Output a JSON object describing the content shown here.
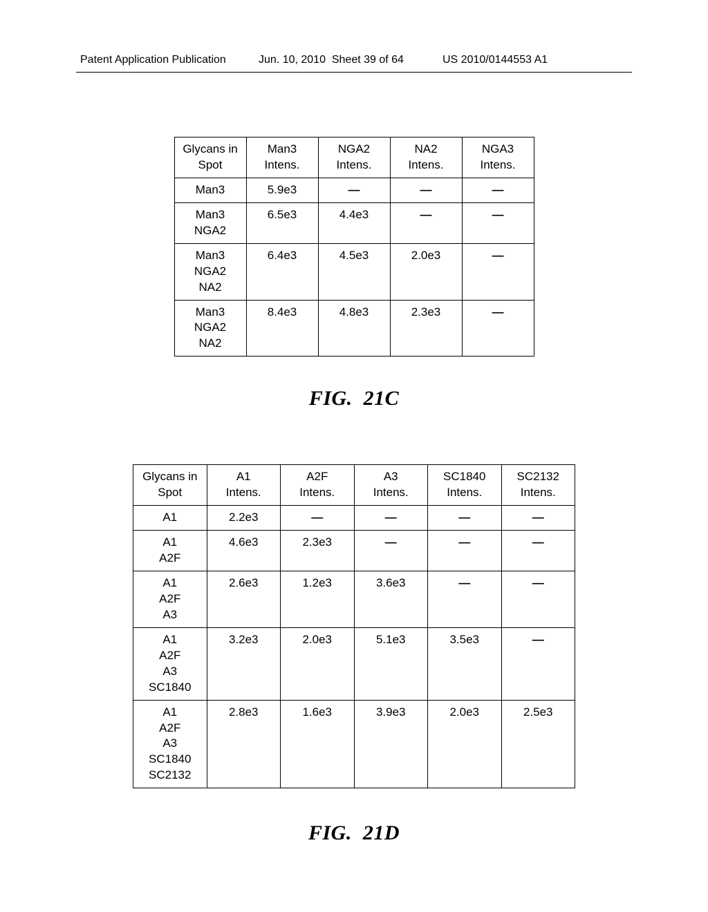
{
  "header": {
    "left": "Patent Application Publication",
    "date": "Jun. 10, 2010",
    "sheet": "Sheet 39 of 64",
    "pubno": "US 2010/0144553 A1"
  },
  "figC": {
    "caption_prefix": "FIG. ",
    "caption_num": "21C",
    "columns": [
      {
        "l1": "Glycans in",
        "l2": "Spot"
      },
      {
        "l1": "Man3",
        "l2": "Intens."
      },
      {
        "l1": "NGA2",
        "l2": "Intens."
      },
      {
        "l1": "NA2",
        "l2": "Intens."
      },
      {
        "l1": "NGA3",
        "l2": "Intens."
      }
    ],
    "rows": [
      {
        "spot": [
          "Man3"
        ],
        "vals": [
          "5.9e3",
          "—",
          "—",
          "—"
        ]
      },
      {
        "spot": [
          "Man3",
          "NGA2"
        ],
        "vals": [
          "6.5e3",
          "4.4e3",
          "—",
          "—"
        ]
      },
      {
        "spot": [
          "Man3",
          "NGA2",
          "NA2"
        ],
        "vals": [
          "6.4e3",
          "4.5e3",
          "2.0e3",
          "—"
        ]
      },
      {
        "spot": [
          "Man3",
          "NGA2",
          "NA2"
        ],
        "vals": [
          "8.4e3",
          "4.8e3",
          "2.3e3",
          "—"
        ]
      }
    ]
  },
  "figD": {
    "caption_prefix": "FIG. ",
    "caption_num": "21D",
    "columns": [
      {
        "l1": "Glycans in",
        "l2": "Spot"
      },
      {
        "l1": "A1",
        "l2": "Intens."
      },
      {
        "l1": "A2F",
        "l2": "Intens."
      },
      {
        "l1": "A3",
        "l2": "Intens."
      },
      {
        "l1": "SC1840",
        "l2": "Intens."
      },
      {
        "l1": "SC2132",
        "l2": "Intens."
      }
    ],
    "rows": [
      {
        "spot": [
          "A1"
        ],
        "vals": [
          "2.2e3",
          "—",
          "—",
          "—",
          "—"
        ]
      },
      {
        "spot": [
          "A1",
          "A2F"
        ],
        "vals": [
          "4.6e3",
          "2.3e3",
          "—",
          "—",
          "—"
        ]
      },
      {
        "spot": [
          "A1",
          "A2F",
          "A3"
        ],
        "vals": [
          "2.6e3",
          "1.2e3",
          "3.6e3",
          "—",
          "—"
        ]
      },
      {
        "spot": [
          "A1",
          "A2F",
          "A3",
          "SC1840"
        ],
        "vals": [
          "3.2e3",
          "2.0e3",
          "5.1e3",
          "3.5e3",
          "—"
        ]
      },
      {
        "spot": [
          "A1",
          "A2F",
          "A3",
          "SC1840",
          "SC2132"
        ],
        "vals": [
          "2.8e3",
          "1.6e3",
          "3.9e3",
          "2.0e3",
          "2.5e3"
        ]
      }
    ]
  },
  "style": {
    "page_bg": "#ffffff",
    "text_color": "#000000",
    "border_color": "#000000",
    "header_fontsize": 16,
    "cell_fontsize": 17,
    "caption_fontsize": 30
  }
}
